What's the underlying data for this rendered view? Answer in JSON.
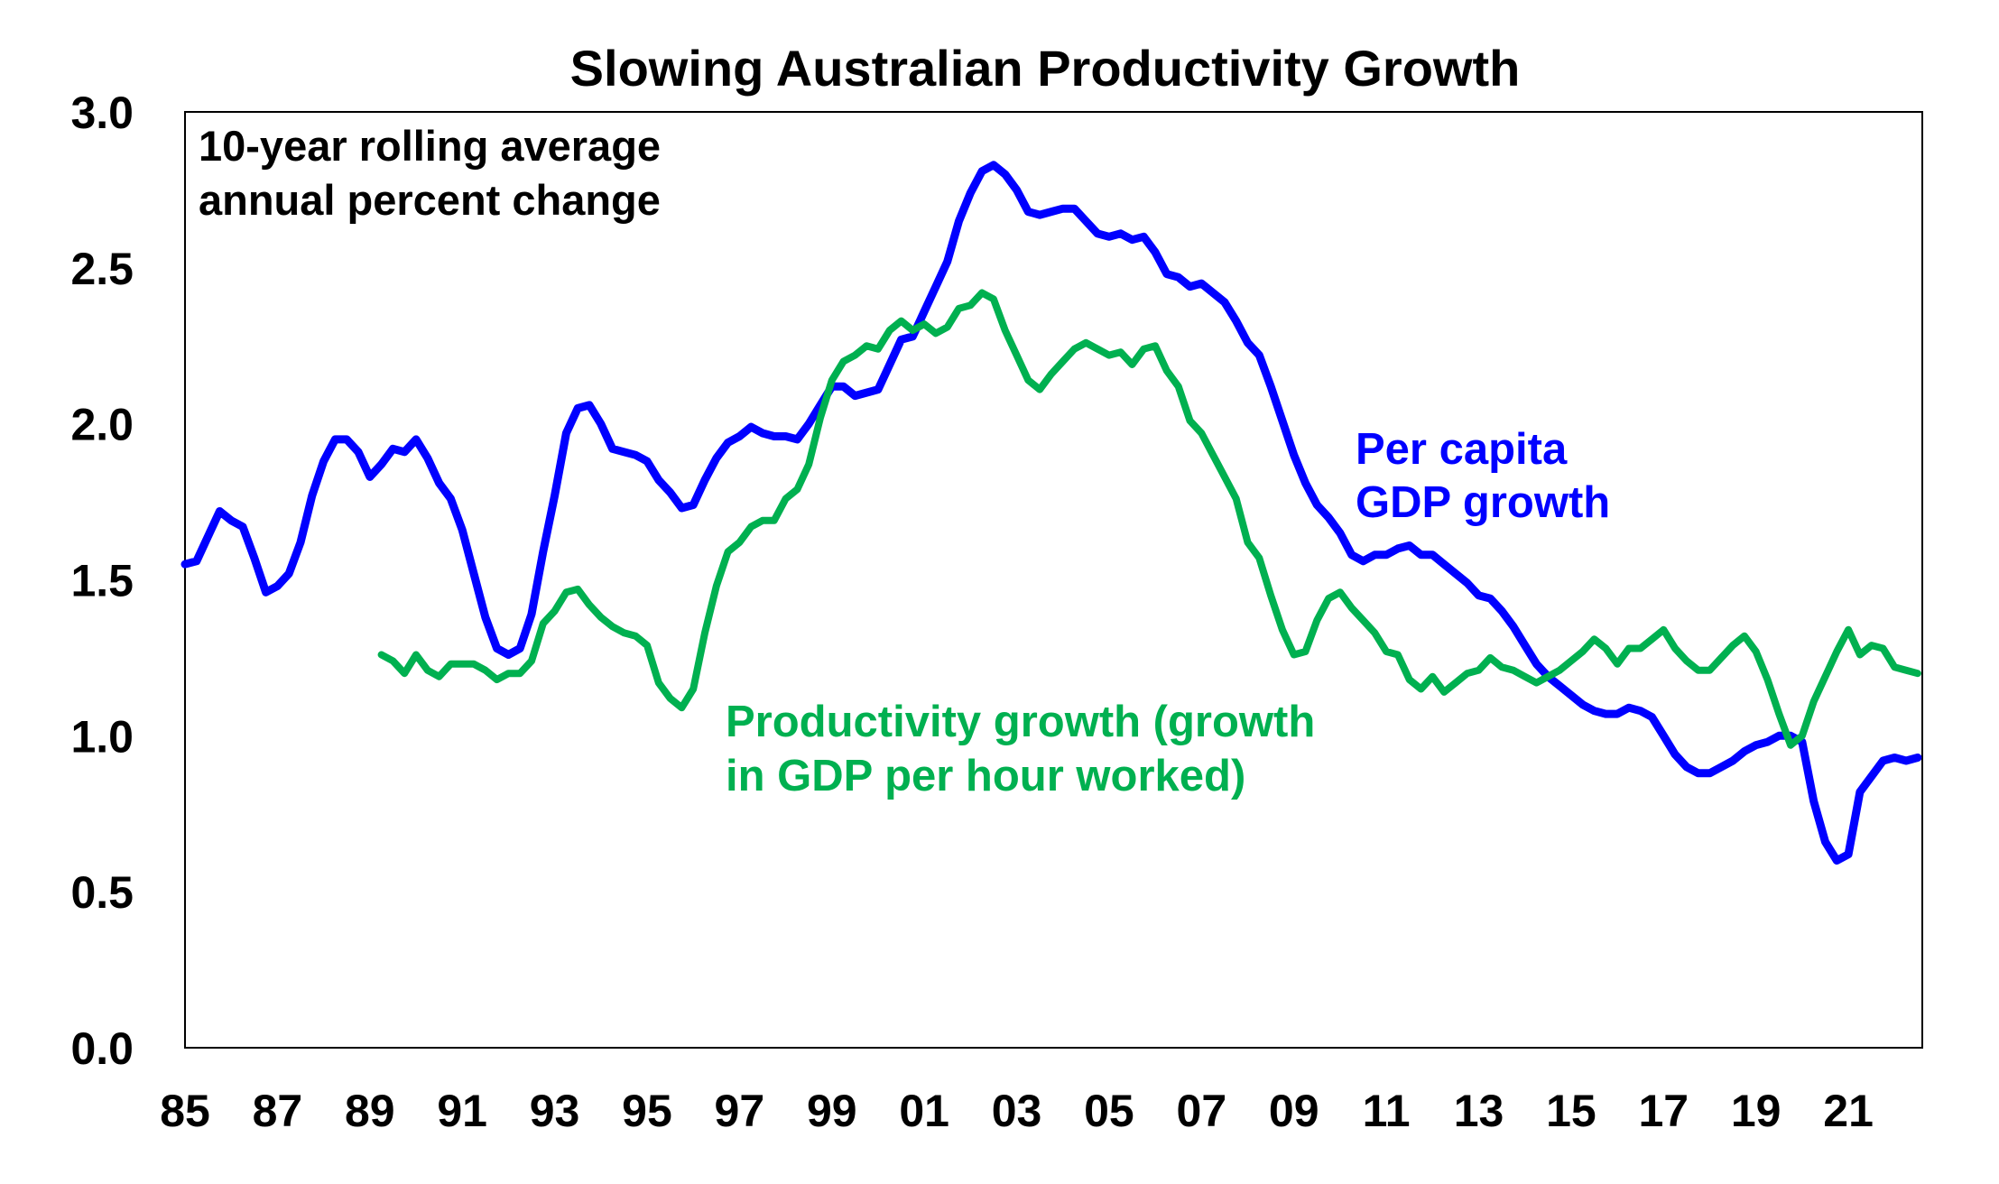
{
  "chart_data": {
    "type": "line",
    "title": "Slowing Australian Productivity Growth",
    "xlabel": "",
    "ylabel": "",
    "annotation": [
      "10-year rolling average",
      "annual percent change"
    ],
    "xlim": [
      1985,
      2022.6
    ],
    "ylim": [
      0.0,
      3.0
    ],
    "grid": false,
    "legend": "inline labels",
    "x_ticks": [
      {
        "value": 1985,
        "label": "85"
      },
      {
        "value": 1987,
        "label": "87"
      },
      {
        "value": 1989,
        "label": "89"
      },
      {
        "value": 1991,
        "label": "91"
      },
      {
        "value": 1993,
        "label": "93"
      },
      {
        "value": 1995,
        "label": "95"
      },
      {
        "value": 1997,
        "label": "97"
      },
      {
        "value": 1999,
        "label": "99"
      },
      {
        "value": 2001,
        "label": "01"
      },
      {
        "value": 2003,
        "label": "03"
      },
      {
        "value": 2005,
        "label": "05"
      },
      {
        "value": 2007,
        "label": "07"
      },
      {
        "value": 2009,
        "label": "09"
      },
      {
        "value": 2011,
        "label": "11"
      },
      {
        "value": 2013,
        "label": "13"
      },
      {
        "value": 2015,
        "label": "15"
      },
      {
        "value": 2017,
        "label": "17"
      },
      {
        "value": 2019,
        "label": "19"
      },
      {
        "value": 2021,
        "label": "21"
      }
    ],
    "y_ticks": [
      {
        "value": 0.0,
        "label": "0.0"
      },
      {
        "value": 0.5,
        "label": "0.5"
      },
      {
        "value": 1.0,
        "label": "1.0"
      },
      {
        "value": 1.5,
        "label": "1.5"
      },
      {
        "value": 2.0,
        "label": "2.0"
      },
      {
        "value": 2.5,
        "label": "2.5"
      },
      {
        "value": 3.0,
        "label": "3.0"
      }
    ],
    "series": [
      {
        "name": "Per capita GDP growth",
        "label_lines": [
          "Per capita",
          "GDP growth"
        ],
        "color": "#0000FF",
        "x": [
          1985.0,
          1985.25,
          1985.5,
          1985.75,
          1986.0,
          1986.25,
          1986.5,
          1986.75,
          1987.0,
          1987.25,
          1987.5,
          1987.75,
          1988.0,
          1988.25,
          1988.5,
          1988.75,
          1989.0,
          1989.25,
          1989.5,
          1989.75,
          1990.0,
          1990.25,
          1990.5,
          1990.75,
          1991.0,
          1991.25,
          1991.5,
          1991.75,
          1992.0,
          1992.25,
          1992.5,
          1992.75,
          1993.0,
          1993.25,
          1993.5,
          1993.75,
          1994.0,
          1994.25,
          1994.5,
          1994.75,
          1995.0,
          1995.25,
          1995.5,
          1995.75,
          1996.0,
          1996.25,
          1996.5,
          1996.75,
          1997.0,
          1997.25,
          1997.5,
          1997.75,
          1998.0,
          1998.25,
          1998.5,
          1998.75,
          1999.0,
          1999.25,
          1999.5,
          1999.75,
          2000.0,
          2000.25,
          2000.5,
          2000.75,
          2001.0,
          2001.25,
          2001.5,
          2001.75,
          2002.0,
          2002.25,
          2002.5,
          2002.75,
          2003.0,
          2003.25,
          2003.5,
          2003.75,
          2004.0,
          2004.25,
          2004.5,
          2004.75,
          2005.0,
          2005.25,
          2005.5,
          2005.75,
          2006.0,
          2006.25,
          2006.5,
          2006.75,
          2007.0,
          2007.25,
          2007.5,
          2007.75,
          2008.0,
          2008.25,
          2008.5,
          2008.75,
          2009.0,
          2009.25,
          2009.5,
          2009.75,
          2010.0,
          2010.25,
          2010.5,
          2010.75,
          2011.0,
          2011.25,
          2011.5,
          2011.75,
          2012.0,
          2012.25,
          2012.5,
          2012.75,
          2013.0,
          2013.25,
          2013.5,
          2013.75,
          2014.0,
          2014.25,
          2014.5,
          2014.75,
          2015.0,
          2015.25,
          2015.5,
          2015.75,
          2016.0,
          2016.25,
          2016.5,
          2016.75,
          2017.0,
          2017.25,
          2017.5,
          2017.75,
          2018.0,
          2018.25,
          2018.5,
          2018.75,
          2019.0,
          2019.25,
          2019.5,
          2019.75,
          2020.0,
          2020.25,
          2020.5,
          2020.75,
          2021.0,
          2021.25,
          2021.5,
          2021.75,
          2022.0,
          2022.25,
          2022.5
        ],
        "values": [
          1.55,
          1.56,
          1.64,
          1.72,
          1.69,
          1.67,
          1.57,
          1.46,
          1.48,
          1.52,
          1.62,
          1.77,
          1.88,
          1.95,
          1.95,
          1.91,
          1.83,
          1.87,
          1.92,
          1.91,
          1.95,
          1.89,
          1.81,
          1.76,
          1.66,
          1.52,
          1.38,
          1.28,
          1.26,
          1.28,
          1.39,
          1.59,
          1.77,
          1.97,
          2.05,
          2.06,
          2.0,
          1.92,
          1.91,
          1.9,
          1.88,
          1.82,
          1.78,
          1.73,
          1.74,
          1.82,
          1.89,
          1.94,
          1.96,
          1.99,
          1.97,
          1.96,
          1.96,
          1.95,
          2.0,
          2.06,
          2.12,
          2.12,
          2.09,
          2.1,
          2.11,
          2.19,
          2.27,
          2.28,
          2.36,
          2.44,
          2.52,
          2.65,
          2.74,
          2.81,
          2.83,
          2.8,
          2.75,
          2.68,
          2.67,
          2.68,
          2.69,
          2.69,
          2.65,
          2.61,
          2.6,
          2.61,
          2.59,
          2.6,
          2.55,
          2.48,
          2.47,
          2.44,
          2.45,
          2.42,
          2.39,
          2.33,
          2.26,
          2.22,
          2.12,
          2.01,
          1.9,
          1.81,
          1.74,
          1.7,
          1.65,
          1.58,
          1.56,
          1.58,
          1.58,
          1.6,
          1.61,
          1.58,
          1.58,
          1.55,
          1.52,
          1.49,
          1.45,
          1.44,
          1.4,
          1.35,
          1.29,
          1.23,
          1.19,
          1.16,
          1.13,
          1.1,
          1.08,
          1.07,
          1.07,
          1.09,
          1.08,
          1.06,
          1.0,
          0.94,
          0.9,
          0.88,
          0.88,
          0.9,
          0.92,
          0.95,
          0.97,
          0.98,
          1.0,
          1.0,
          0.98,
          0.79,
          0.66,
          0.6,
          0.62,
          0.82,
          0.87,
          0.92,
          0.93,
          0.92,
          0.93
        ]
      },
      {
        "name": "Productivity growth (growth in GDP per hour worked)",
        "label_lines": [
          "Productivity growth (growth",
          "in GDP per hour worked)"
        ],
        "color": "#00B050",
        "x": [
          1989.25,
          1989.5,
          1989.75,
          1990.0,
          1990.25,
          1990.5,
          1990.75,
          1991.0,
          1991.25,
          1991.5,
          1991.75,
          1992.0,
          1992.25,
          1992.5,
          1992.75,
          1993.0,
          1993.25,
          1993.5,
          1993.75,
          1994.0,
          1994.25,
          1994.5,
          1994.75,
          1995.0,
          1995.25,
          1995.5,
          1995.75,
          1996.0,
          1996.25,
          1996.5,
          1996.75,
          1997.0,
          1997.25,
          1997.5,
          1997.75,
          1998.0,
          1998.25,
          1998.5,
          1998.75,
          1999.0,
          1999.25,
          1999.5,
          1999.75,
          2000.0,
          2000.25,
          2000.5,
          2000.75,
          2001.0,
          2001.25,
          2001.5,
          2001.75,
          2002.0,
          2002.25,
          2002.5,
          2002.75,
          2003.0,
          2003.25,
          2003.5,
          2003.75,
          2004.0,
          2004.25,
          2004.5,
          2004.75,
          2005.0,
          2005.25,
          2005.5,
          2005.75,
          2006.0,
          2006.25,
          2006.5,
          2006.75,
          2007.0,
          2007.25,
          2007.5,
          2007.75,
          2008.0,
          2008.25,
          2008.5,
          2008.75,
          2009.0,
          2009.25,
          2009.5,
          2009.75,
          2010.0,
          2010.25,
          2010.5,
          2010.75,
          2011.0,
          2011.25,
          2011.5,
          2011.75,
          2012.0,
          2012.25,
          2012.5,
          2012.75,
          2013.0,
          2013.25,
          2013.5,
          2013.75,
          2014.0,
          2014.25,
          2014.5,
          2014.75,
          2015.0,
          2015.25,
          2015.5,
          2015.75,
          2016.0,
          2016.25,
          2016.5,
          2016.75,
          2017.0,
          2017.25,
          2017.5,
          2017.75,
          2018.0,
          2018.25,
          2018.5,
          2018.75,
          2019.0,
          2019.25,
          2019.5,
          2019.75,
          2020.0,
          2020.25,
          2020.5,
          2020.75,
          2021.0,
          2021.25,
          2021.5,
          2021.75,
          2022.0,
          2022.25,
          2022.5
        ],
        "values": [
          1.26,
          1.24,
          1.2,
          1.26,
          1.21,
          1.19,
          1.23,
          1.23,
          1.23,
          1.21,
          1.18,
          1.2,
          1.2,
          1.24,
          1.36,
          1.4,
          1.46,
          1.47,
          1.42,
          1.38,
          1.35,
          1.33,
          1.32,
          1.29,
          1.17,
          1.12,
          1.09,
          1.15,
          1.33,
          1.48,
          1.59,
          1.62,
          1.67,
          1.69,
          1.69,
          1.76,
          1.79,
          1.87,
          2.02,
          2.14,
          2.2,
          2.22,
          2.25,
          2.24,
          2.3,
          2.33,
          2.3,
          2.32,
          2.29,
          2.31,
          2.37,
          2.38,
          2.42,
          2.4,
          2.3,
          2.22,
          2.14,
          2.11,
          2.16,
          2.2,
          2.24,
          2.26,
          2.24,
          2.22,
          2.23,
          2.19,
          2.24,
          2.25,
          2.17,
          2.12,
          2.01,
          1.97,
          1.9,
          1.83,
          1.76,
          1.62,
          1.57,
          1.45,
          1.34,
          1.26,
          1.27,
          1.37,
          1.44,
          1.46,
          1.41,
          1.37,
          1.33,
          1.27,
          1.26,
          1.18,
          1.15,
          1.19,
          1.14,
          1.17,
          1.2,
          1.21,
          1.25,
          1.22,
          1.21,
          1.19,
          1.17,
          1.19,
          1.21,
          1.24,
          1.27,
          1.31,
          1.28,
          1.23,
          1.28,
          1.28,
          1.31,
          1.34,
          1.28,
          1.24,
          1.21,
          1.21,
          1.25,
          1.29,
          1.32,
          1.27,
          1.18,
          1.07,
          0.97,
          1.0,
          1.11,
          1.19,
          1.27,
          1.34,
          1.26,
          1.29,
          1.28,
          1.22,
          1.21,
          1.2
        ]
      }
    ]
  }
}
